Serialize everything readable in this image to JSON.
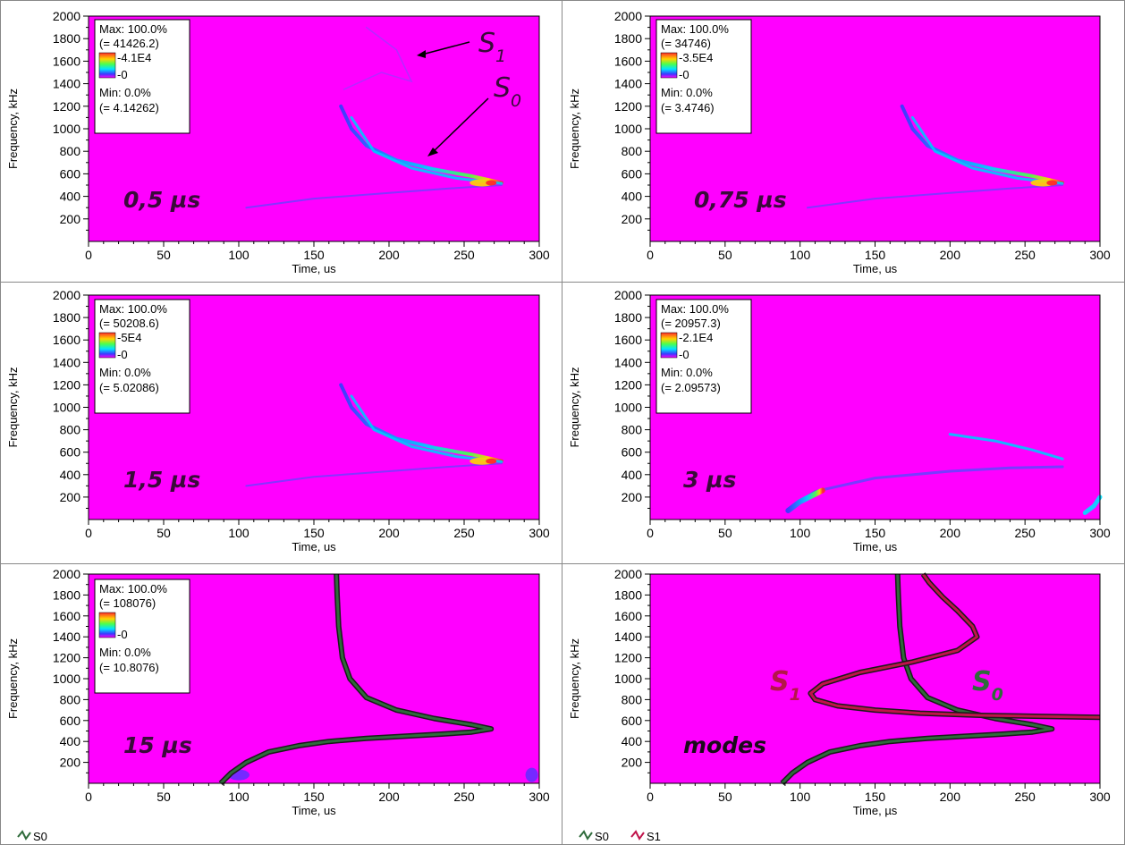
{
  "colors": {
    "background": "#ff00ff",
    "s0_curve": "#2f6b3b",
    "s1_curve": "#c0134a",
    "label_dark": "#3a0a3a",
    "s1_label": "#b5154a",
    "s0_label": "#2f6b3b"
  },
  "legend_left": {
    "s0": "S0"
  },
  "legend_right": {
    "s0": "S0",
    "s1": "S1"
  },
  "chart_data": [
    {
      "type": "heatmap",
      "xlabel": "Time, us",
      "ylabel": "Frequency, kHz",
      "xlim": [
        0,
        300
      ],
      "ylim": [
        0,
        2000
      ],
      "xticks": [
        0,
        50,
        100,
        150,
        200,
        250,
        300
      ],
      "yticks": [
        200,
        400,
        600,
        800,
        1000,
        1200,
        1400,
        1600,
        1800,
        2000
      ],
      "annotation": "0,5 µs",
      "mode_labels": [
        "S",
        "1",
        "S",
        "0"
      ],
      "scale_box": {
        "max": "Max: 100.0%",
        "max_value": "(= 41426.2)",
        "top": "4.1E4",
        "bottom": "0",
        "min": "Min: 0.0%",
        "min_value": "(= 4.14262)"
      }
    },
    {
      "type": "heatmap",
      "xlabel": "Time, us",
      "ylabel": "Frequency, kHz",
      "xlim": [
        0,
        300
      ],
      "ylim": [
        0,
        2000
      ],
      "xticks": [
        0,
        50,
        100,
        150,
        200,
        250,
        300
      ],
      "yticks": [
        200,
        400,
        600,
        800,
        1000,
        1200,
        1400,
        1600,
        1800,
        2000
      ],
      "annotation": "0,75 µs",
      "scale_box": {
        "max": "Max: 100.0%",
        "max_value": "(= 34746)",
        "top": "3.5E4",
        "bottom": "0",
        "min": "Min: 0.0%",
        "min_value": "(= 3.4746)"
      }
    },
    {
      "type": "heatmap",
      "xlabel": "Time, us",
      "ylabel": "Frequency, kHz",
      "xlim": [
        0,
        300
      ],
      "ylim": [
        0,
        2000
      ],
      "xticks": [
        0,
        50,
        100,
        150,
        200,
        250,
        300
      ],
      "yticks": [
        200,
        400,
        600,
        800,
        1000,
        1200,
        1400,
        1600,
        1800,
        2000
      ],
      "annotation": "1,5 µs",
      "scale_box": {
        "max": "Max: 100.0%",
        "max_value": "(= 50208.6)",
        "top": "5E4",
        "bottom": "0",
        "min": "Min: 0.0%",
        "min_value": "(= 5.02086)"
      }
    },
    {
      "type": "heatmap",
      "xlabel": "Time, us",
      "ylabel": "Frequency, kHz",
      "xlim": [
        0,
        300
      ],
      "ylim": [
        0,
        2000
      ],
      "xticks": [
        0,
        50,
        100,
        150,
        200,
        250,
        300
      ],
      "yticks": [
        200,
        400,
        600,
        800,
        1000,
        1200,
        1400,
        1600,
        1800,
        2000
      ],
      "annotation": "3 µs",
      "scale_box": {
        "max": "Max: 100.0%",
        "max_value": "(= 20957.3)",
        "top": "2.1E4",
        "bottom": "0",
        "min": "Min: 0.0%",
        "min_value": "(= 2.09573)"
      }
    },
    {
      "type": "heatmap",
      "xlabel": "Time, us",
      "ylabel": "Frequency, kHz",
      "xlim": [
        0,
        300
      ],
      "ylim": [
        0,
        2000
      ],
      "xticks": [
        0,
        50,
        100,
        150,
        200,
        250,
        300
      ],
      "yticks": [
        200,
        400,
        600,
        800,
        1000,
        1200,
        1400,
        1600,
        1800,
        2000
      ],
      "annotation": "15 µs",
      "scale_box": {
        "max": "Max: 100.0%",
        "max_value": "(= 108076)",
        "top": "",
        "bottom": "0",
        "min": "Min: 0.0%",
        "min_value": "(= 10.8076)"
      },
      "series": [
        {
          "name": "S0",
          "x": [
            88,
            95,
            105,
            120,
            140,
            160,
            185,
            210,
            235,
            255,
            268,
            255,
            230,
            205,
            185,
            174,
            169,
            166.5,
            165.5,
            165
          ],
          "y": [
            0,
            100,
            200,
            300,
            360,
            400,
            430,
            450,
            470,
            490,
            520,
            560,
            620,
            700,
            820,
            1000,
            1200,
            1500,
            1800,
            2000
          ]
        }
      ]
    },
    {
      "type": "line",
      "xlabel": "Time, µs",
      "ylabel": "Frequency, kHz",
      "xlim": [
        0,
        300
      ],
      "ylim": [
        0,
        2000
      ],
      "xticks": [
        0,
        50,
        100,
        150,
        200,
        250,
        300
      ],
      "yticks": [
        200,
        400,
        600,
        800,
        1000,
        1200,
        1400,
        1600,
        1800,
        2000
      ],
      "annotation": "modes",
      "mode_labels": [
        "S",
        "1",
        "S",
        "0"
      ],
      "series": [
        {
          "name": "S0",
          "x": [
            88,
            95,
            105,
            120,
            140,
            160,
            185,
            210,
            235,
            255,
            268,
            255,
            230,
            205,
            185,
            174,
            169,
            166.5,
            165.5,
            165
          ],
          "y": [
            0,
            100,
            200,
            300,
            360,
            400,
            430,
            450,
            470,
            490,
            520,
            560,
            620,
            700,
            820,
            1000,
            1200,
            1500,
            1800,
            2000
          ]
        },
        {
          "name": "S1",
          "x": [
            300,
            260,
            220,
            180,
            150,
            125,
            110,
            107,
            115,
            140,
            175,
            205,
            218,
            215,
            205,
            195,
            186,
            182
          ],
          "y": [
            630,
            640,
            650,
            670,
            700,
            740,
            800,
            860,
            950,
            1060,
            1160,
            1270,
            1400,
            1500,
            1650,
            1780,
            1920,
            2000
          ]
        }
      ]
    }
  ]
}
